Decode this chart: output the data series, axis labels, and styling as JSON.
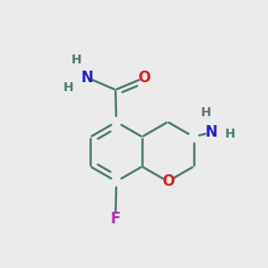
{
  "background_color": "#ebebeb",
  "bond_color": "#4a7c6f",
  "bond_width": 1.8,
  "atom_colors": {
    "O": "#dd2020",
    "N": "#2020cc",
    "F": "#b030b0",
    "H": "#507a70",
    "C": "#4a7c6f"
  },
  "font_size_atom": 12,
  "font_size_H": 10,
  "xlim": [
    0.0,
    1.0
  ],
  "ylim": [
    0.05,
    0.95
  ]
}
